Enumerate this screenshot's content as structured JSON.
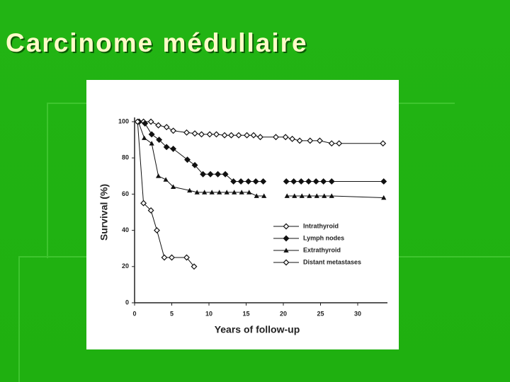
{
  "slide_title": "Carcinome médullaire",
  "chart_data": {
    "type": "line",
    "xlabel": "Years of follow-up",
    "ylabel": "Survival (%)",
    "xlim": [
      0,
      34
    ],
    "ylim": [
      0,
      100
    ],
    "xticks": [
      0,
      5,
      10,
      15,
      20,
      25,
      30
    ],
    "yticks": [
      0,
      20,
      40,
      60,
      80,
      100
    ],
    "legend": "lower right",
    "series": [
      {
        "name": "Intrathyroid",
        "color": "#111111",
        "marker": "open-diamond",
        "x": [
          0.6,
          1.2,
          2.2,
          3.2,
          4.3,
          5.2,
          7.0,
          8.1,
          9.0,
          10.1,
          11.0,
          12.1,
          13.0,
          14.0,
          15.1,
          16.0,
          16.9,
          19.0,
          20.3,
          21.2,
          22.2,
          23.6,
          24.9,
          26.5,
          27.5,
          33.4
        ],
        "values": [
          100,
          100,
          100,
          98,
          97,
          95,
          94,
          93.5,
          93,
          93,
          93,
          92.5,
          92.5,
          92.5,
          92.5,
          92.5,
          91.5,
          91.5,
          91.5,
          90.5,
          89.5,
          89.5,
          89.5,
          88,
          88,
          88
        ]
      },
      {
        "name": "Lymph nodes",
        "color": "#111111",
        "marker": "filled-diamond",
        "x": [
          0.6,
          1.4,
          2.3,
          3.3,
          4.3,
          5.2,
          7.1,
          8.1,
          9.2,
          10.2,
          11.2,
          12.2,
          13.3,
          14.3,
          15.3,
          16.3,
          17.3,
          null,
          20.4,
          21.4,
          22.4,
          23.4,
          24.4,
          25.4,
          26.5,
          33.5
        ],
        "values": [
          100,
          99,
          93,
          90,
          86,
          85,
          79,
          76,
          71,
          71,
          71,
          71,
          67,
          67,
          67,
          67,
          67,
          null,
          67,
          67,
          67,
          67,
          67,
          67,
          67,
          67
        ]
      },
      {
        "name": "Extrathyroid",
        "color": "#111111",
        "marker": "triangle",
        "x": [
          0.5,
          1.3,
          2.3,
          3.2,
          4.2,
          5.2,
          7.4,
          8.4,
          9.4,
          10.4,
          11.4,
          12.4,
          13.4,
          14.4,
          15.4,
          16.4,
          17.4,
          null,
          20.5,
          21.5,
          22.5,
          23.5,
          24.5,
          25.5,
          26.5,
          33.5
        ],
        "values": [
          100,
          91,
          88,
          70,
          68,
          64,
          62,
          61,
          61,
          61,
          61,
          61,
          61,
          61,
          61,
          59,
          59,
          null,
          59,
          59,
          59,
          59,
          59,
          59,
          59,
          58
        ]
      },
      {
        "name": "Distant metastases",
        "color": "#111111",
        "marker": "open-diamond",
        "x": [
          0.4,
          1.2,
          2.2,
          3.0,
          4.0,
          5.0,
          7.0,
          8.0
        ],
        "values": [
          100,
          55,
          51,
          40,
          25,
          25,
          25,
          20
        ]
      }
    ]
  }
}
